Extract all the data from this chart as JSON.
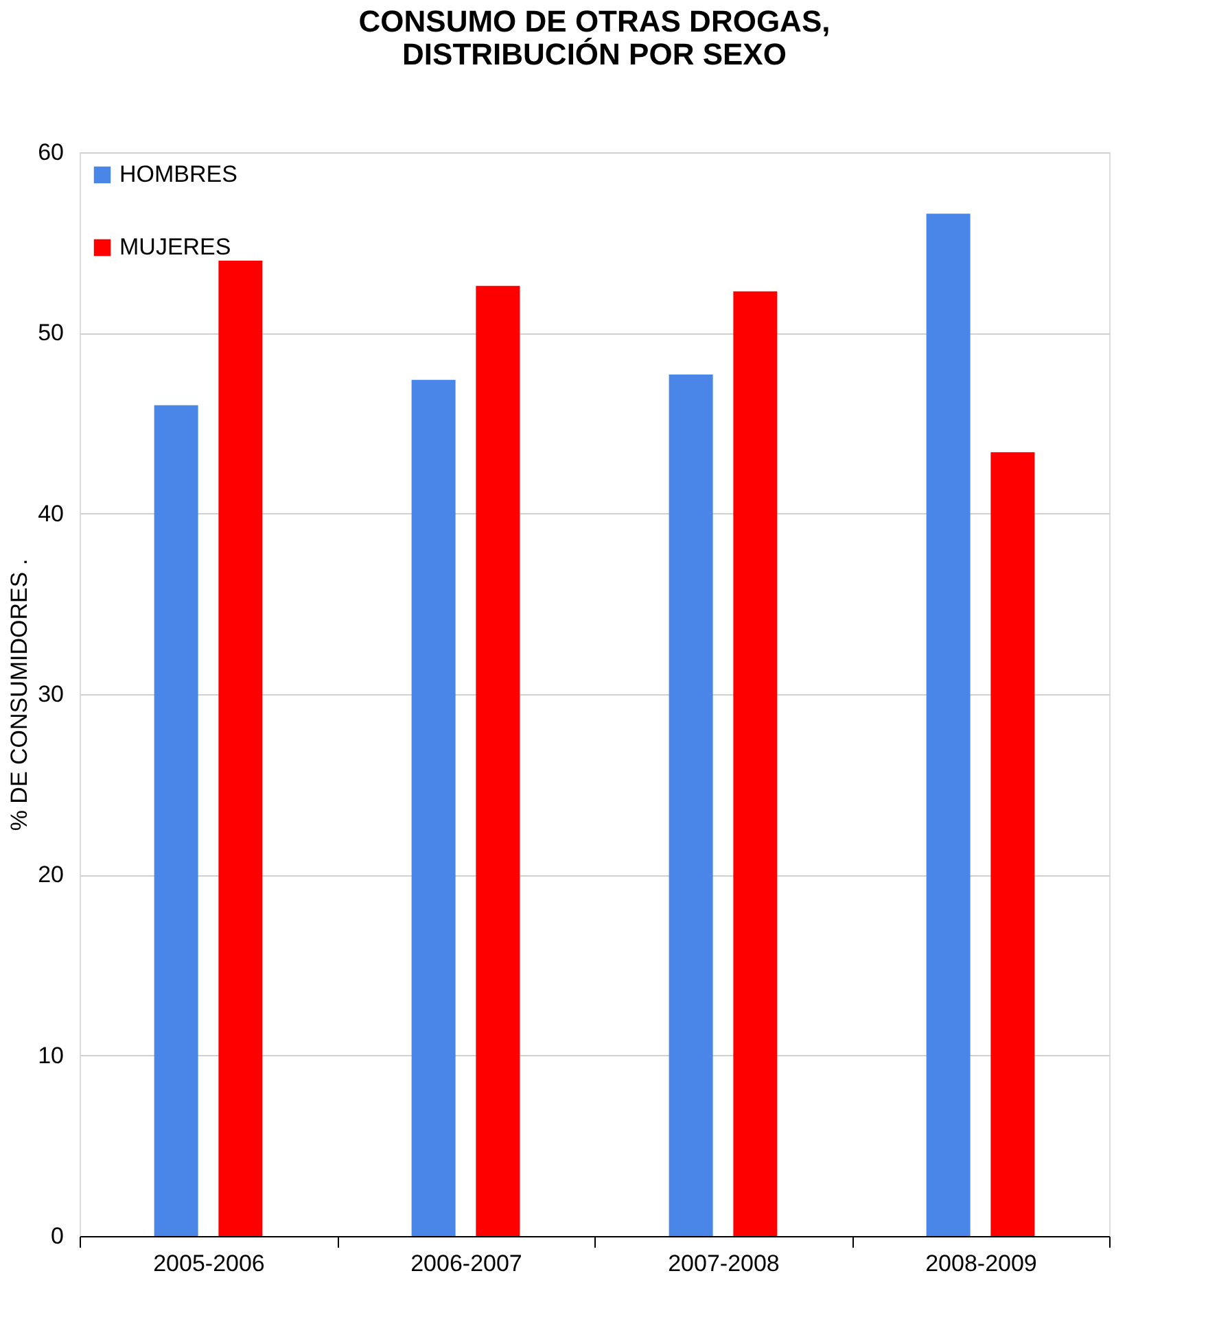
{
  "chart_data": {
    "type": "bar",
    "title": "CONSUMO DE OTRAS DROGAS,\nDISTRIBUCIÓN POR SEXO",
    "ylabel": "% DE CONSUMIDORES .",
    "categories": [
      "2005-2006",
      "2006-2007",
      "2007-2008",
      "2008-2009"
    ],
    "series": [
      {
        "name": "HOMBRES",
        "color": "#4a86e8",
        "values": [
          46.0,
          47.4,
          47.7,
          56.6
        ]
      },
      {
        "name": "MUJERES",
        "color": "#ff0000",
        "values": [
          54.0,
          52.6,
          52.3,
          43.4
        ]
      }
    ],
    "ylim": [
      0,
      60
    ],
    "yticks": [
      0,
      10,
      20,
      30,
      40,
      50,
      60
    ],
    "grid": "y",
    "legend": "top left"
  }
}
